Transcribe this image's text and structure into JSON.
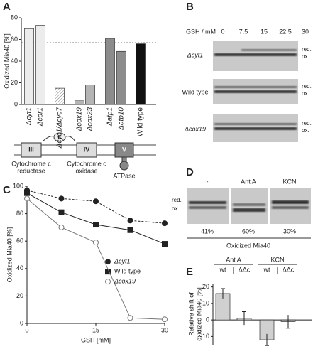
{
  "panel_labels": [
    "A",
    "B",
    "C",
    "D",
    "E"
  ],
  "chart_data": [
    {
      "type": "bar",
      "y_label": "Oxidized Mia40 [%]",
      "categories": [
        "Δcyt1",
        "Δcor1",
        "Δcyc1/Δcyc7",
        "Δcox19",
        "Δcox23",
        "Δatp1",
        "Δatp10",
        "Wild type"
      ],
      "values": [
        70,
        73,
        15,
        4,
        18,
        61,
        49,
        56
      ],
      "colors": [
        "#ececec",
        "#ececec",
        "#ffffff",
        "#b4b4b4",
        "#b4b4b4",
        "#8c8c8c",
        "#8c8c8c",
        "#111111"
      ],
      "hatched": [
        false,
        false,
        true,
        false,
        false,
        false,
        false,
        false
      ],
      "ylim": [
        0,
        80
      ],
      "yticks": [
        0,
        20,
        40,
        60,
        80
      ],
      "reference_line": 57
    },
    {
      "type": "line",
      "x_label": "GSH [mM]",
      "y_label": "Oxidized Mia40 [%]",
      "x": [
        0,
        7.5,
        15,
        22.5,
        30
      ],
      "xlim": [
        0,
        30
      ],
      "xticks": [
        0,
        15,
        30
      ],
      "ylim": [
        0,
        100
      ],
      "yticks": [
        0,
        20,
        40,
        60,
        80,
        100
      ],
      "legend": "right",
      "series": [
        {
          "name": "Δcyt1",
          "color": "#222222",
          "marker": "circle",
          "filled": true,
          "dashed": true,
          "values": [
            97,
            91,
            89,
            75,
            73
          ]
        },
        {
          "name": "Wild type",
          "color": "#222222",
          "marker": "square",
          "filled": true,
          "dashed": false,
          "values": [
            95,
            81,
            72,
            68,
            58
          ]
        },
        {
          "name": "Δcox19",
          "color": "#777777",
          "marker": "circle",
          "filled": false,
          "dashed": false,
          "values": [
            91,
            70,
            59,
            4,
            3
          ]
        }
      ]
    },
    {
      "type": "bar",
      "y_label": [
        "Relative shift of",
        "oxidized Mia40 [%]"
      ],
      "groups": [
        "Ant A",
        "KCN"
      ],
      "categories": [
        "wt",
        "ΔΔc",
        "wt",
        "ΔΔc"
      ],
      "values": [
        16,
        1,
        -12,
        -1
      ],
      "errors": [
        3,
        4,
        3.5,
        4
      ],
      "colors": [
        "#d0d0d0",
        "#d0d0d0",
        "#d0d0d0",
        "#d0d0d0"
      ],
      "hatched": [
        false,
        false,
        false,
        false
      ],
      "ylim": [
        -15,
        22
      ],
      "yticks": [
        -10,
        0,
        10,
        20
      ]
    }
  ],
  "diagram": {
    "complexes": [
      "III",
      "IV",
      "V"
    ],
    "carrier": "c",
    "labels": [
      [
        "Cytochrome c",
        "reductase"
      ],
      [
        "Cytochrome c",
        "oxidase"
      ],
      [
        "ATPase"
      ]
    ]
  },
  "blot_b": {
    "header": "GSH / mM",
    "columns": [
      "0",
      "7.5",
      "15",
      "22.5",
      "30"
    ],
    "rows": [
      {
        "name": "Δcyt1",
        "bands": [
          "red.",
          "ox."
        ]
      },
      {
        "name": "Wild type",
        "bands": [
          "red.",
          "ox."
        ]
      },
      {
        "name": "Δcox19",
        "bands": [
          "red.",
          "ox."
        ]
      }
    ]
  },
  "blot_d": {
    "columns": [
      "-",
      "Ant A",
      "KCN"
    ],
    "bands": [
      "red.",
      "ox."
    ],
    "percentages": [
      "41%",
      "60%",
      "30%"
    ],
    "caption": "Oxidized Mia40"
  }
}
